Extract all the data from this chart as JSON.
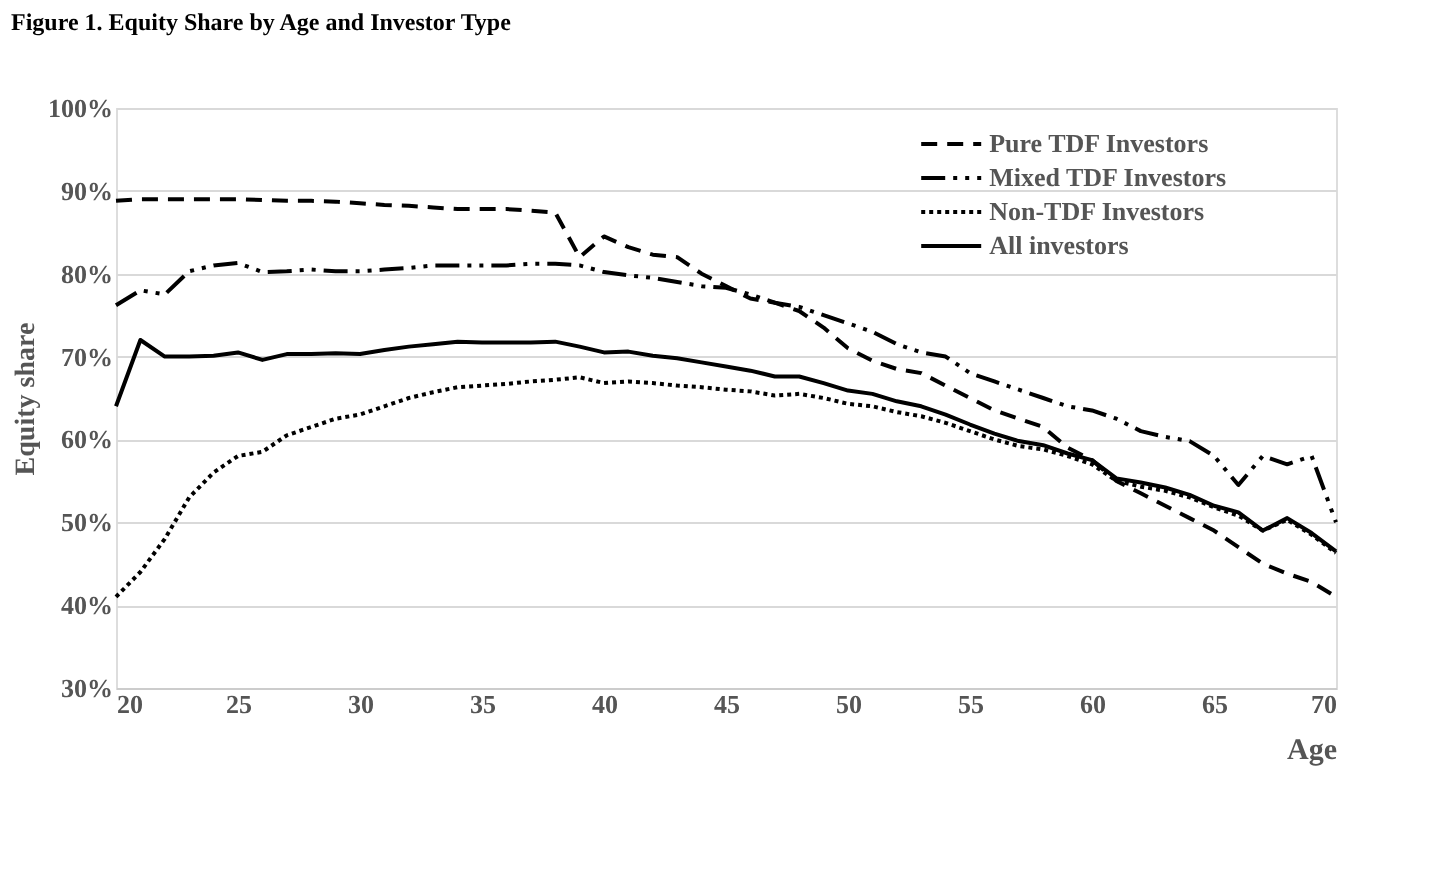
{
  "chart_data": {
    "type": "line",
    "title": "Figure 1.  Equity Share by Age and Investor Type",
    "xlabel": "Age",
    "ylabel": "Equity share",
    "x": [
      20,
      21,
      22,
      23,
      24,
      25,
      26,
      27,
      28,
      29,
      30,
      31,
      32,
      33,
      34,
      35,
      36,
      37,
      38,
      39,
      40,
      41,
      42,
      43,
      44,
      45,
      46,
      47,
      48,
      49,
      50,
      51,
      52,
      53,
      54,
      55,
      56,
      57,
      58,
      59,
      60,
      61,
      62,
      63,
      64,
      65,
      66,
      67,
      68,
      69,
      70
    ],
    "series": [
      {
        "name": "Pure TDF Investors",
        "color": "#000000",
        "line_style": "dashed",
        "values": [
          88.8,
          89,
          89,
          89,
          89,
          89,
          88.9,
          88.8,
          88.8,
          88.7,
          88.5,
          88.3,
          88.2,
          88,
          87.8,
          87.8,
          87.8,
          87.6,
          87.4,
          82,
          84.5,
          83.2,
          82.3,
          82,
          80,
          78.5,
          77,
          76.5,
          75.5,
          73.5,
          71,
          69.5,
          68.5,
          68,
          66.5,
          65,
          63.5,
          62.5,
          61.5,
          59,
          57.5,
          55,
          53.5,
          52,
          50.5,
          49,
          47,
          45,
          43.8,
          42.8,
          41
        ]
      },
      {
        "name": "Mixed TDF Investors",
        "color": "#000000",
        "line_style": "dashdot",
        "values": [
          76.2,
          78,
          77.5,
          80.3,
          81,
          81.3,
          80.2,
          80.3,
          80.5,
          80.3,
          80.3,
          80.5,
          80.7,
          81,
          81,
          81,
          81,
          81.2,
          81.2,
          81,
          80.2,
          79.8,
          79.5,
          79,
          78.5,
          78.3,
          77.5,
          76.5,
          76,
          75,
          74,
          73,
          71.5,
          70.5,
          70,
          68,
          67,
          66,
          65,
          64,
          63.5,
          62.5,
          61,
          60.3,
          59.8,
          58,
          54.5,
          58,
          57,
          58,
          50
        ]
      },
      {
        "name": "Non-TDF Investors",
        "color": "#000000",
        "line_style": "dotted",
        "values": [
          41,
          44,
          48,
          53,
          56,
          58,
          58.5,
          60.5,
          61.5,
          62.5,
          63,
          64,
          65,
          65.7,
          66.3,
          66.5,
          66.7,
          67,
          67.2,
          67.5,
          66.8,
          67,
          66.8,
          66.5,
          66.3,
          66,
          65.8,
          65.3,
          65.5,
          65,
          64.3,
          64,
          63.3,
          62.8,
          62,
          61,
          60,
          59.2,
          58.8,
          58,
          57,
          55,
          54.3,
          53.8,
          53,
          51.8,
          50.8,
          49,
          50.3,
          48.5,
          46.3
        ]
      },
      {
        "name": "All investors",
        "color": "#000000",
        "line_style": "solid",
        "values": [
          64,
          72,
          70,
          70,
          70.1,
          70.5,
          69.6,
          70.3,
          70.3,
          70.4,
          70.3,
          70.8,
          71.2,
          71.5,
          71.8,
          71.7,
          71.7,
          71.7,
          71.8,
          71.2,
          70.5,
          70.6,
          70.1,
          69.8,
          69.3,
          68.8,
          68.3,
          67.6,
          67.6,
          66.8,
          65.9,
          65.5,
          64.6,
          64,
          63,
          61.8,
          60.7,
          59.8,
          59.3,
          58.3,
          57.5,
          55.3,
          54.8,
          54.2,
          53.3,
          52,
          51.2,
          49,
          50.5,
          48.7,
          46.5
        ]
      }
    ],
    "xlim": [
      20,
      70
    ],
    "xticks": [
      20,
      25,
      30,
      35,
      40,
      45,
      50,
      55,
      60,
      65,
      70
    ],
    "ylim": [
      30,
      100
    ],
    "yticks": [
      {
        "value": 30,
        "label": "30%"
      },
      {
        "value": 40,
        "label": "40%"
      },
      {
        "value": 50,
        "label": "50%"
      },
      {
        "value": 60,
        "label": "60%"
      },
      {
        "value": 70,
        "label": "70%"
      },
      {
        "value": 80,
        "label": "80%"
      },
      {
        "value": 90,
        "label": "90%"
      },
      {
        "value": 100,
        "label": "100%"
      }
    ],
    "grid": "y",
    "legend": "top right",
    "marker": "none"
  }
}
